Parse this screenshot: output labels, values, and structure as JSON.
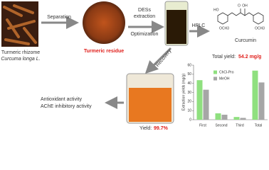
{
  "diagram": {
    "separation": "Separation",
    "extraction": [
      "DESs",
      "extraction"
    ],
    "optimization": "Optimization",
    "hplc": "HPLC",
    "recovery": "Recovery",
    "rhizome": [
      "Turmeric rhizome",
      "Curcuma longa L."
    ],
    "residue": "Turmeric residue",
    "compound": "Curcumin",
    "chem_labels": [
      "OH",
      "O",
      "HO",
      "OCH3",
      "OCH3"
    ],
    "total_yield": [
      "Total yield:",
      "54.2 mg/g"
    ],
    "recovery_yield": [
      "Yield:",
      "99.7%"
    ],
    "activities": [
      "Antioxidant activity",
      "AChE inhibitory activity"
    ]
  },
  "chart_data": {
    "type": "bar",
    "y_label": "Extraction yields (mg/g)",
    "categories": [
      "First",
      "Second",
      "Third",
      "Total"
    ],
    "series": [
      {
        "name": "ChCl-Pro",
        "color": "#8fe07f",
        "values": [
          43.5,
          7,
          3,
          54
        ]
      },
      {
        "name": "MeOH",
        "color": "#a6a6a6",
        "values": [
          33,
          5.5,
          2,
          41
        ]
      }
    ],
    "ylim": [
      0,
      60
    ],
    "yticks": [
      0,
      10,
      20,
      30,
      40,
      50,
      60
    ]
  }
}
